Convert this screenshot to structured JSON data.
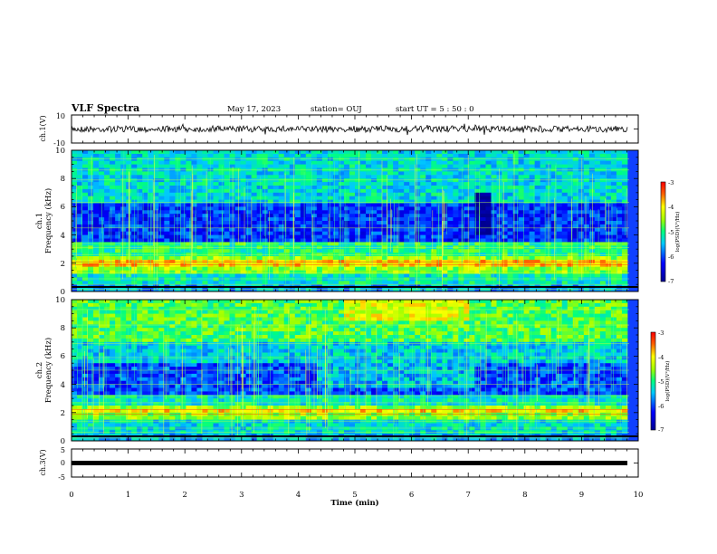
{
  "header": {
    "title": "VLF Spectra",
    "date": "May 17, 2023",
    "station": "station= OUJ",
    "start": "start  UT  =   5  : 50 : 0"
  },
  "chart_data": [
    {
      "type": "line",
      "ylabel": "ch.1(V)",
      "ylim": [
        -10,
        10
      ],
      "yticks": [
        "10",
        "-10"
      ],
      "xlim": [
        0,
        10
      ]
    },
    {
      "type": "heatmap",
      "ylabel_top": "ch.1",
      "ylabel": "Frequency (kHz)",
      "ylim": [
        0,
        10
      ],
      "yticks": [
        "0",
        "2",
        "4",
        "6",
        "8",
        "10"
      ],
      "xlim": [
        0,
        10
      ],
      "colorbar": {
        "label": "log(PSD)(V²/Hz)",
        "range": [
          -7,
          -3
        ],
        "ticks": [
          "-3",
          "-4",
          "-5",
          "-6",
          "-7"
        ]
      }
    },
    {
      "type": "heatmap",
      "ylabel_top": "ch.2",
      "ylabel": "Frequency (kHz)",
      "ylim": [
        0,
        10
      ],
      "yticks": [
        "0",
        "2",
        "4",
        "6",
        "8",
        "10"
      ],
      "xlim": [
        0,
        10
      ],
      "colorbar": {
        "label": "log(PSD)(V²/Hz)",
        "range": [
          -7,
          -3
        ],
        "ticks": [
          "-3",
          "-4",
          "-5",
          "-6",
          "-7"
        ]
      }
    },
    {
      "type": "line",
      "ylabel": "ch.3(V)",
      "ylim": [
        -5,
        5
      ],
      "yticks": [
        "5",
        "0",
        "-5"
      ],
      "xlabel": "Time (min)",
      "xlim": [
        0,
        10
      ],
      "xticks": [
        "0",
        "1",
        "2",
        "3",
        "4",
        "5",
        "6",
        "7",
        "8",
        "9",
        "10"
      ]
    }
  ]
}
